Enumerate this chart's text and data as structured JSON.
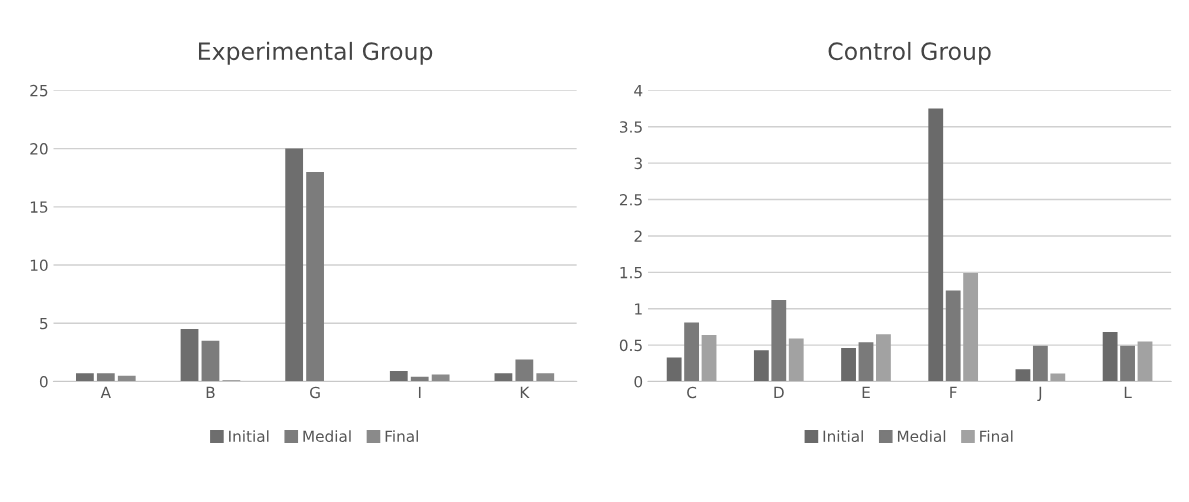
{
  "chart_data": [
    {
      "type": "bar",
      "title": "Experimental Group",
      "categories": [
        "A",
        "B",
        "G",
        "I",
        "K"
      ],
      "ylim": [
        0,
        25
      ],
      "yticks": [
        0,
        5,
        10,
        15,
        20,
        25
      ],
      "grid": "y",
      "legend": "bottom",
      "series": [
        {
          "name": "Initial",
          "color": "#6e6e6e",
          "values": [
            0.7,
            4.5,
            20,
            0.9,
            0.7
          ]
        },
        {
          "name": "Medial",
          "color": "#7c7c7c",
          "values": [
            0.7,
            3.5,
            18,
            0.4,
            1.9
          ]
        },
        {
          "name": "Final",
          "color": "#8a8a8a",
          "values": [
            0.5,
            0.1,
            0,
            0.6,
            0.7
          ]
        }
      ]
    },
    {
      "type": "bar",
      "title": "Control Group",
      "categories": [
        "C",
        "D",
        "E",
        "F",
        "J",
        "L"
      ],
      "ylim": [
        0,
        4
      ],
      "yticks": [
        0,
        0.5,
        1,
        1.5,
        2,
        2.5,
        3,
        3.5,
        4
      ],
      "grid": "y",
      "legend": "bottom",
      "series": [
        {
          "name": "Initial",
          "color": "#6a6a6a",
          "values": [
            0.33,
            0.43,
            0.46,
            3.75,
            0.17,
            0.68
          ]
        },
        {
          "name": "Medial",
          "color": "#7a7a7a",
          "values": [
            0.81,
            1.12,
            0.54,
            1.25,
            0.49,
            0.49
          ]
        },
        {
          "name": "Final",
          "color": "#a2a2a2",
          "values": [
            0.64,
            0.59,
            0.65,
            1.49,
            0.11,
            0.55
          ]
        }
      ]
    }
  ]
}
